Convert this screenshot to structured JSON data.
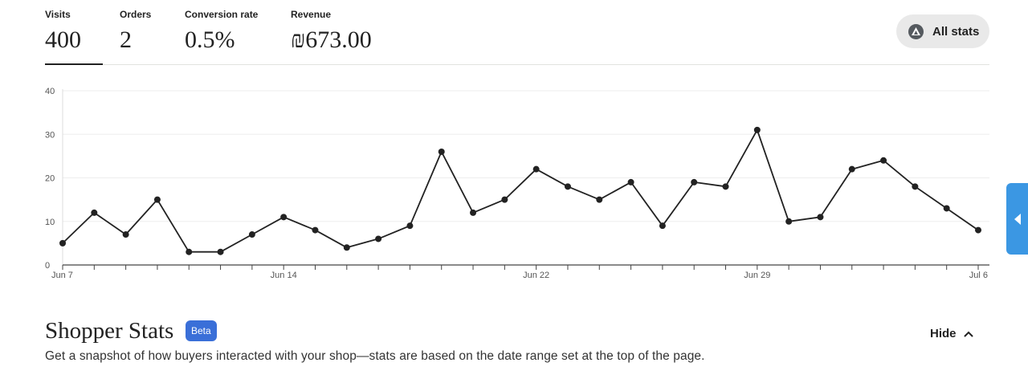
{
  "metrics": [
    {
      "label": "Visits",
      "value": "400",
      "active": true
    },
    {
      "label": "Orders",
      "value": "2",
      "active": false
    },
    {
      "label": "Conversion rate",
      "value": "0.5%",
      "active": false
    },
    {
      "label": "Revenue",
      "value": "₪673.00",
      "active": false
    }
  ],
  "all_stats": {
    "label": "All stats",
    "icon": "etsy-seller-icon"
  },
  "chart_data": {
    "type": "line",
    "x_start": "Jun 7",
    "x_end": "Jul 6",
    "x_tick_labels": [
      "Jun 7",
      "Jun 14",
      "Jun 22",
      "Jun 29",
      "Jul 6"
    ],
    "y_ticks": [
      0,
      10,
      20,
      30,
      40
    ],
    "ylim": [
      0,
      40
    ],
    "grid": true,
    "series": [
      {
        "values": [
          5,
          12,
          7,
          15,
          3,
          3,
          7,
          11,
          8,
          4,
          6,
          9,
          26,
          12,
          15,
          22,
          18,
          15,
          19,
          9,
          19,
          18,
          31,
          10,
          11,
          22,
          24,
          18,
          13,
          8
        ],
        "color": "#222222"
      }
    ]
  },
  "side_tab": {
    "icon": "caret-left-icon",
    "color": "#3b97e3"
  },
  "shopper": {
    "title": "Shopper Stats",
    "badge": "Beta",
    "hide_label": "Hide",
    "description": "Get a snapshot of how buyers interacted with your shop—stats are based on the date range set at the top of the page."
  }
}
